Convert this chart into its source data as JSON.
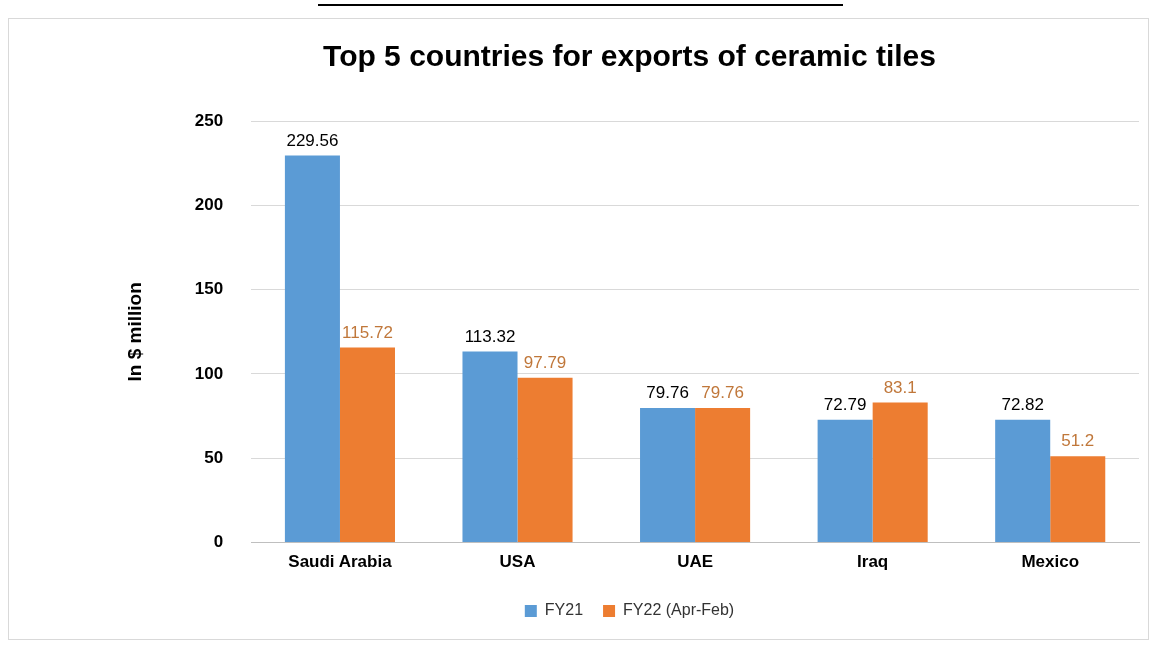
{
  "chart_data": {
    "type": "bar",
    "title": "Top 5 countries for exports of ceramic tiles",
    "ylabel": "In $ million",
    "categories": [
      "Saudi Arabia",
      "USA",
      "UAE",
      "Iraq",
      "Mexico"
    ],
    "series": [
      {
        "name": "FY21",
        "color": "#5b9bd5",
        "values": [
          229.56,
          113.32,
          79.76,
          72.79,
          72.82
        ]
      },
      {
        "name": "FY22 (Apr-Feb)",
        "color": "#ed7d31",
        "values": [
          115.72,
          97.79,
          79.76,
          83.1,
          51.2
        ]
      }
    ],
    "ylim": [
      0,
      250
    ],
    "yticks": [
      0,
      50,
      100,
      150,
      200,
      250
    ],
    "grid": "y",
    "legend": "bottom",
    "data_labels": true
  }
}
